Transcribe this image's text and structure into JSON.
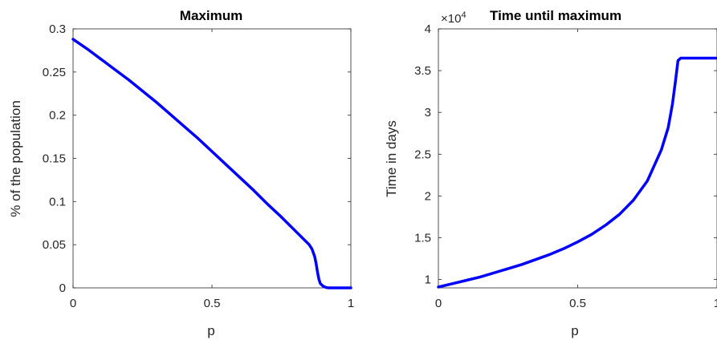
{
  "chart_data": [
    {
      "type": "line",
      "title": "Maximum",
      "xlabel": "p",
      "ylabel": "% of the population",
      "xlim": [
        0,
        1
      ],
      "ylim": [
        0,
        0.3
      ],
      "xticks": [
        "0",
        "0.5",
        "1"
      ],
      "yticks": [
        "0",
        "0.05",
        "0.1",
        "0.15",
        "0.2",
        "0.25",
        "0.3"
      ],
      "grid": false,
      "color": "#0000ff",
      "series": [
        {
          "x": [
            0,
            0.05,
            0.1,
            0.15,
            0.2,
            0.25,
            0.3,
            0.35,
            0.4,
            0.45,
            0.5,
            0.55,
            0.6,
            0.65,
            0.7,
            0.75,
            0.8,
            0.85,
            0.86,
            0.87,
            0.875,
            0.88,
            0.885,
            0.89,
            0.9,
            0.91,
            0.92,
            0.95,
            1.0
          ],
          "y": [
            0.288,
            0.277,
            0.265,
            0.253,
            0.241,
            0.228,
            0.215,
            0.201,
            0.187,
            0.173,
            0.158,
            0.143,
            0.128,
            0.113,
            0.097,
            0.082,
            0.066,
            0.05,
            0.045,
            0.036,
            0.028,
            0.018,
            0.01,
            0.005,
            0.002,
            0.0005,
            0,
            0,
            0
          ]
        }
      ]
    },
    {
      "type": "line",
      "title": "Time until maximum",
      "multiplier": "×10^4",
      "xlabel": "p",
      "ylabel": "Time in days",
      "xlim": [
        0,
        1
      ],
      "ylim": [
        0.9,
        4
      ],
      "xticks": [
        "0",
        "0.5",
        "1"
      ],
      "yticks": [
        "1",
        "1.5",
        "2",
        "2.5",
        "3",
        "3.5",
        "4"
      ],
      "grid": false,
      "color": "#0000ff",
      "series": [
        {
          "x": [
            0,
            0.05,
            0.1,
            0.15,
            0.2,
            0.25,
            0.3,
            0.35,
            0.4,
            0.45,
            0.5,
            0.55,
            0.6,
            0.65,
            0.7,
            0.75,
            0.8,
            0.825,
            0.84,
            0.85,
            0.86,
            0.87,
            0.9,
            0.95,
            1.0
          ],
          "y": [
            0.91,
            0.95,
            0.99,
            1.03,
            1.08,
            1.13,
            1.18,
            1.24,
            1.3,
            1.37,
            1.45,
            1.54,
            1.65,
            1.78,
            1.95,
            2.18,
            2.55,
            2.82,
            3.1,
            3.35,
            3.62,
            3.65,
            3.65,
            3.65,
            3.65
          ]
        }
      ]
    }
  ]
}
